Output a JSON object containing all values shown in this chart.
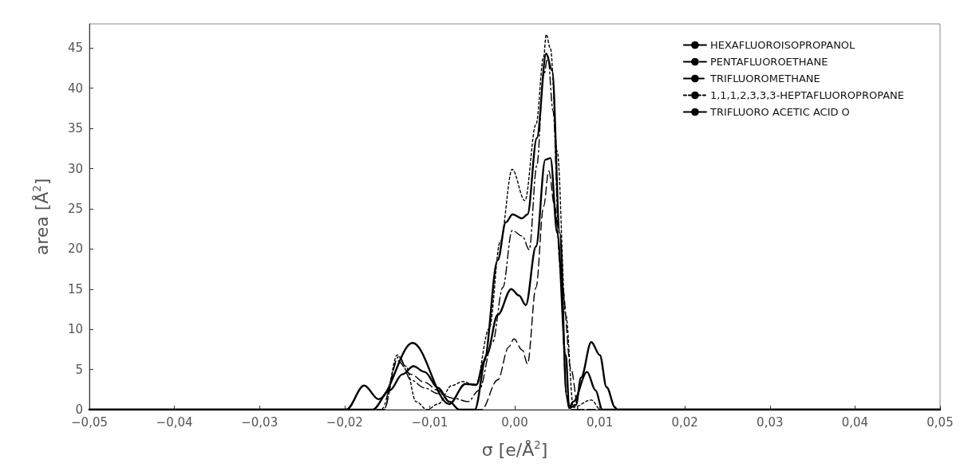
{
  "chart_data": {
    "type": "line",
    "xlabel": "σ [e/Å$^{2}$]",
    "ylabel": "area [Å$^{2}$]",
    "xlim": [
      -0.05,
      0.05
    ],
    "xticks": [
      {
        "value": -0.05,
        "label": "−0,05"
      },
      {
        "value": -0.04,
        "label": "−0,04"
      },
      {
        "value": -0.03,
        "label": "−0,03"
      },
      {
        "value": -0.02,
        "label": "−0,02"
      },
      {
        "value": -0.01,
        "label": "−0,01"
      },
      {
        "value": 0,
        "label": "0,00"
      },
      {
        "value": 0.01,
        "label": "0,01"
      },
      {
        "value": 0.02,
        "label": "0,02"
      },
      {
        "value": 0.03,
        "label": "0,03"
      },
      {
        "value": 0.04,
        "label": "0,04"
      },
      {
        "value": 0.05,
        "label": "0,05"
      }
    ],
    "ylim": [
      0,
      48
    ],
    "yticks": [
      0,
      5,
      10,
      15,
      20,
      25,
      30,
      35,
      40,
      45
    ],
    "grid": false,
    "legend": "top right",
    "series": [
      {
        "name": "HEXAFLUOROISOPROPANOL",
        "color": "#000000",
        "line_style": "solid",
        "x": [
          -0.05,
          -0.0198,
          -0.0177,
          -0.016,
          -0.012,
          -0.0077,
          -0.0058,
          -0.0045,
          -0.0036,
          -0.002,
          -0.00105,
          -0.00025,
          0.00086,
          0.0015,
          0.0026,
          0.0037,
          0.0044,
          0.0053,
          0.0061,
          0.0064,
          0.0072,
          0.0078,
          0.009,
          0.01,
          0.0108,
          0.0118,
          0.012,
          0.05
        ],
        "values": [
          0,
          0,
          3.0,
          1.3,
          8.3,
          0.7,
          3.2,
          3.1,
          6,
          18.6,
          23.3,
          24.3,
          23.8,
          24.3,
          33.8,
          44.3,
          42.2,
          22,
          1.7,
          0.2,
          0.6,
          4,
          8.4,
          6.8,
          2.8,
          0.3,
          0,
          0
        ]
      },
      {
        "name": "PENTAFLUOROETHANE",
        "color": "#000000",
        "line_style": "dashdot",
        "x": [
          -0.05,
          -0.0157,
          -0.0136,
          -0.0122,
          -0.0106,
          -0.009,
          -0.0071,
          -0.0055,
          -0.0042,
          -0.0026,
          -0.0014,
          -0.0003,
          0.0009,
          0.0017,
          0.0026,
          0.0034,
          0.0039,
          0.0045,
          0.0053,
          0.0061,
          0.0066,
          0.05
        ],
        "values": [
          0,
          0,
          6.6,
          3.7,
          2.7,
          2.0,
          1.4,
          1.0,
          2.4,
          8.4,
          15.2,
          22.3,
          21.6,
          19.9,
          30.4,
          41.6,
          43.9,
          37.2,
          18.6,
          1.7,
          0,
          0
        ]
      },
      {
        "name": "TRIFLUOROMETHANE",
        "color": "#000000",
        "line_style": "dashed",
        "x": [
          -0.05,
          -0.0154,
          -0.0138,
          -0.0122,
          -0.0106,
          -0.009,
          -0.0077,
          -0.0065,
          -0.0039,
          -0.002,
          -0.0007,
          -0.0001,
          0.0009,
          0.0015,
          0.0025,
          0.0034,
          0.004,
          0.0047,
          0.0056,
          0.0066,
          0.0075,
          0.05
        ],
        "values": [
          0,
          0,
          6.1,
          4.4,
          3.4,
          2.4,
          1.0,
          0,
          0,
          3.7,
          7.8,
          8.8,
          7.4,
          5.7,
          15.2,
          25.3,
          29.7,
          25.3,
          15.2,
          5.1,
          0,
          0
        ]
      },
      {
        "name": "1,1,1,2,3,3,3-HEPTAFLUOROPROPANE",
        "color": "#000000",
        "line_style": "dotted",
        "x": [
          -0.05,
          -0.0154,
          -0.0138,
          -0.0128,
          -0.0116,
          -0.0103,
          -0.009,
          -0.0074,
          -0.0061,
          -0.0046,
          -0.003,
          -0.0017,
          -0.0003,
          0.0012,
          0.0025,
          0.0034,
          0.0037,
          0.0042,
          0.005,
          0.006,
          0.0069,
          0.009,
          0.0101,
          0.05
        ],
        "values": [
          0,
          0,
          6.8,
          5.4,
          1.0,
          0,
          0.7,
          3.0,
          3.5,
          3.0,
          10.1,
          20.9,
          29.9,
          26.0,
          35.5,
          43.9,
          46.7,
          44.9,
          32.1,
          11.8,
          0.3,
          1.2,
          0,
          0
        ]
      },
      {
        "name": "TRIFLUORO ACETIC ACID O",
        "color": "#000000",
        "line_style": "solid",
        "x": [
          -0.05,
          -0.0167,
          -0.0147,
          -0.0132,
          -0.0119,
          -0.0106,
          -0.009,
          -0.0077,
          -0.0065,
          -0.0047,
          -0.0033,
          -0.002,
          -0.0004,
          0.0005,
          0.0013,
          0.0025,
          0.0036,
          0.0042,
          0.005,
          0.006,
          0.0064,
          0.0069,
          0.0085,
          0.0095,
          0.0103,
          0.05
        ],
        "values": [
          0,
          0,
          2.4,
          4.4,
          5.4,
          4.7,
          2.7,
          1.0,
          0,
          0,
          6.8,
          11.8,
          15.0,
          14.2,
          13.0,
          20.3,
          31.1,
          31.3,
          22,
          6.8,
          0.3,
          1,
          4.7,
          2.4,
          0,
          0
        ]
      }
    ]
  }
}
